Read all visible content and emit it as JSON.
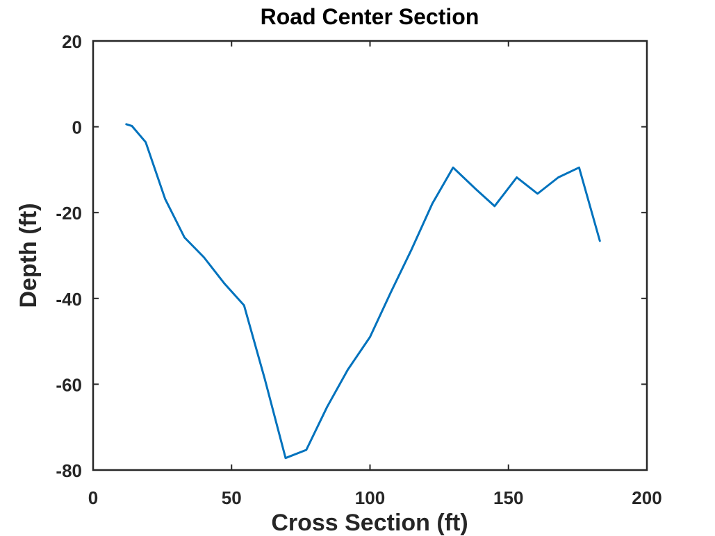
{
  "chart_data": {
    "type": "line",
    "title": "Road Center Section",
    "xlabel": "Cross Section (ft)",
    "ylabel": "Depth (ft)",
    "xlim": [
      0,
      200
    ],
    "ylim": [
      -80,
      20
    ],
    "xticks": [
      0,
      50,
      100,
      150,
      200
    ],
    "yticks": [
      20,
      0,
      -20,
      -40,
      -60,
      -80
    ],
    "grid": false,
    "line_color": "#0072BD",
    "series": [
      {
        "x": [
          12,
          14,
          19,
          26,
          33,
          40,
          47.5,
          54.5,
          62,
          69.5,
          77,
          84.5,
          92,
          100,
          107.5,
          115,
          122.5,
          130,
          138,
          145,
          153,
          160.5,
          168,
          175.5,
          183
        ],
        "y": [
          0.6,
          0.2,
          -3.6,
          -16.8,
          -25.8,
          -30.4,
          -36.6,
          -41.6,
          -58.8,
          -77.2,
          -75.3,
          -65.3,
          -56.6,
          -49.0,
          -38.6,
          -28.6,
          -17.9,
          -9.5,
          -14.4,
          -18.5,
          -11.8,
          -15.6,
          -11.8,
          -9.5,
          -26.6
        ]
      }
    ]
  }
}
